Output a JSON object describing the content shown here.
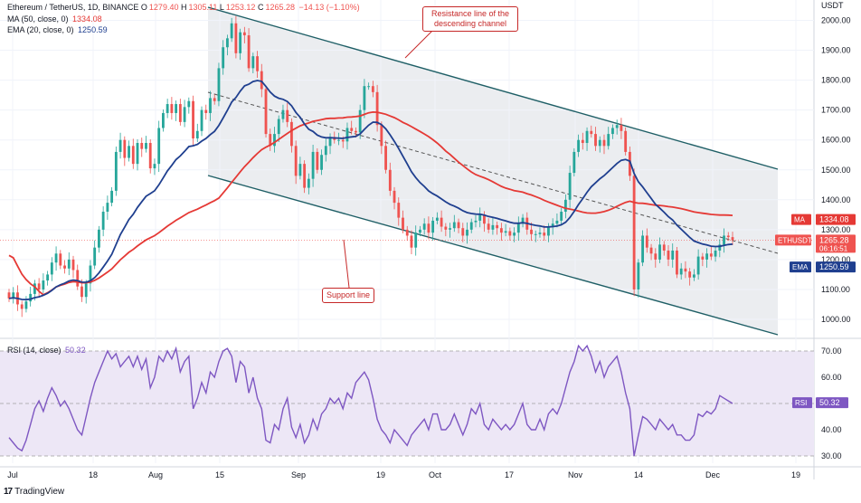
{
  "legend": {
    "symbol": "Ethereum / TetherUS, 1D, BINANCE",
    "o_label": "O",
    "o": "1279.40",
    "h_label": "H",
    "h": "1305.11",
    "l_label": "L",
    "l": "1253.12",
    "c_label": "C",
    "c": "1265.28",
    "chg": "−14.13 (−1.10%)",
    "ma_label": "MA (50, close, 0)",
    "ma_value": "1334.08",
    "ema_label": "EMA (20, close, 0)",
    "ema_value": "1250.59",
    "rsi_label": "RSI (14, close)",
    "rsi_value": "50.32"
  },
  "annotations": {
    "resistance": "Resistance line of the descending channel",
    "support": "Support line"
  },
  "footer": {
    "brand": "TradingView"
  },
  "colors": {
    "up": "#26a69a",
    "down": "#ef5350",
    "ma": "#e53935",
    "ema": "#1f3f8f",
    "rsi": "#7e57c2",
    "channel_fill": "#e9ebee",
    "channel_line": "#1f5f66",
    "annotation": "#c62828",
    "rsi_band": "#ede7f6"
  },
  "chart_data": [
    {
      "type": "candlestick",
      "title": "Ethereum / TetherUS, 1D, BINANCE",
      "currency": "USDT",
      "x_labels": [
        "Jul",
        "18",
        "Aug",
        "15",
        "Sep",
        "19",
        "Oct",
        "17",
        "Nov",
        "14",
        "Dec",
        "19"
      ],
      "y_ticks": [
        1000,
        1100,
        1200,
        1300,
        1400,
        1500,
        1600,
        1700,
        1800,
        1900,
        2000
      ],
      "ylim": [
        930,
        2085
      ],
      "price_badges": [
        {
          "name": "MA",
          "value": "1334.08"
        },
        {
          "name": "ETHUSDT",
          "value": "1265.28",
          "sub": "06:16:51"
        },
        {
          "name": "EMA",
          "value": "1250.59"
        }
      ],
      "closes": [
        1070,
        1090,
        1050,
        1035,
        1060,
        1085,
        1120,
        1100,
        1130,
        1150,
        1190,
        1220,
        1180,
        1170,
        1200,
        1165,
        1110,
        1075,
        1120,
        1180,
        1240,
        1300,
        1360,
        1390,
        1430,
        1560,
        1600,
        1540,
        1580,
        1520,
        1590,
        1570,
        1590,
        1505,
        1520,
        1640,
        1690,
        1720,
        1690,
        1720,
        1660,
        1710,
        1730,
        1605,
        1630,
        1700,
        1690,
        1740,
        1730,
        1840,
        1910,
        1940,
        1990,
        1890,
        1960,
        1950,
        1840,
        1880,
        1830,
        1770,
        1620,
        1580,
        1620,
        1670,
        1700,
        1660,
        1580,
        1480,
        1520,
        1440,
        1470,
        1560,
        1500,
        1550,
        1580,
        1610,
        1600,
        1600,
        1595,
        1640,
        1630,
        1625,
        1700,
        1780,
        1780,
        1760,
        1650,
        1580,
        1500,
        1430,
        1390,
        1340,
        1300,
        1280,
        1240,
        1290,
        1300,
        1320,
        1290,
        1330,
        1340,
        1310,
        1300,
        1305,
        1325,
        1305,
        1280,
        1300,
        1325,
        1330,
        1350,
        1320,
        1300,
        1315,
        1305,
        1290,
        1295,
        1280,
        1290,
        1320,
        1340,
        1300,
        1285,
        1285,
        1290,
        1280,
        1310,
        1320,
        1330,
        1360,
        1400,
        1490,
        1560,
        1600,
        1590,
        1630,
        1620,
        1580,
        1600,
        1580,
        1620,
        1640,
        1650,
        1630,
        1560,
        1480,
        1100,
        1190,
        1280,
        1240,
        1220,
        1200,
        1250,
        1230,
        1200,
        1230,
        1150,
        1170,
        1160,
        1140,
        1150,
        1210,
        1200,
        1220,
        1210,
        1230,
        1250,
        1280,
        1275,
        1265
      ],
      "highs_max": 2030,
      "lows_min": 1000
    },
    {
      "type": "line",
      "title": "RSI (14, close)",
      "levels": [
        30,
        40,
        50,
        60,
        70
      ],
      "ylim": [
        26,
        74
      ],
      "band": [
        30,
        70
      ],
      "values": [
        37,
        35,
        33,
        32,
        36,
        42,
        48,
        51,
        47,
        52,
        56,
        53,
        49,
        51,
        48,
        44,
        40,
        38,
        45,
        52,
        58,
        62,
        66,
        70,
        67,
        69,
        64,
        66,
        68,
        64,
        68,
        63,
        67,
        56,
        60,
        68,
        66,
        70,
        67,
        71,
        62,
        66,
        68,
        48,
        52,
        58,
        54,
        62,
        60,
        66,
        70,
        71,
        68,
        58,
        66,
        64,
        54,
        60,
        52,
        48,
        36,
        35,
        42,
        40,
        48,
        52,
        41,
        37,
        42,
        35,
        38,
        44,
        40,
        46,
        48,
        52,
        50,
        52,
        48,
        54,
        52,
        58,
        60,
        62,
        59,
        52,
        44,
        40,
        38,
        35,
        40,
        38,
        36,
        34,
        38,
        40,
        42,
        44,
        40,
        46,
        46,
        40,
        40,
        42,
        46,
        42,
        38,
        42,
        48,
        46,
        50,
        42,
        40,
        44,
        42,
        40,
        42,
        40,
        42,
        46,
        50,
        42,
        40,
        40,
        44,
        40,
        46,
        48,
        46,
        50,
        56,
        62,
        66,
        72,
        70,
        72,
        68,
        62,
        66,
        60,
        64,
        66,
        68,
        62,
        54,
        48,
        30,
        38,
        45,
        44,
        42,
        40,
        44,
        42,
        40,
        42,
        38,
        38,
        36,
        36,
        38,
        46,
        45,
        47,
        46,
        48,
        53,
        52,
        51,
        50
      ]
    }
  ]
}
